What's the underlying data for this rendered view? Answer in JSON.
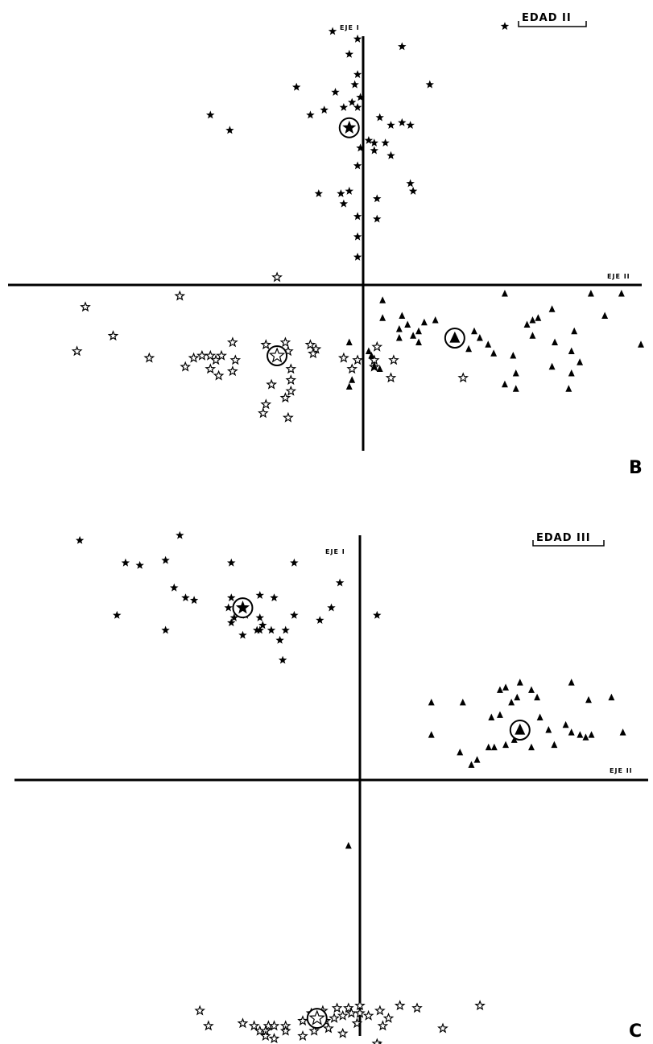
{
  "chart_data": [
    {
      "type": "scatter",
      "title": "EDAD II",
      "panel_label": "B",
      "axis_labels": {
        "vertical": "EJE I",
        "horizontal": "EJE II"
      },
      "grid": false,
      "legend": "none",
      "xlim": [
        -1.0,
        1.0
      ],
      "ylim": [
        -0.75,
        1.1
      ],
      "series": [
        {
          "marker": "filled-star",
          "points": [
            [
              -0.11,
              1.0
            ],
            [
              -0.02,
              0.97
            ],
            [
              -0.05,
              0.91
            ],
            [
              0.14,
              0.94
            ],
            [
              -0.02,
              0.83
            ],
            [
              -0.03,
              0.79
            ],
            [
              0.24,
              0.79
            ],
            [
              0.51,
              1.02
            ],
            [
              -0.24,
              0.78
            ],
            [
              -0.1,
              0.76
            ],
            [
              -0.01,
              0.74
            ],
            [
              -0.04,
              0.72
            ],
            [
              -0.07,
              0.7
            ],
            [
              -0.14,
              0.69
            ],
            [
              -0.19,
              0.67
            ],
            [
              -0.02,
              0.7
            ],
            [
              0.06,
              0.66
            ],
            [
              0.1,
              0.63
            ],
            [
              0.14,
              0.64
            ],
            [
              0.17,
              0.63
            ],
            [
              -0.55,
              0.67
            ],
            [
              -0.48,
              0.61
            ],
            [
              0.02,
              0.57
            ],
            [
              0.04,
              0.56
            ],
            [
              0.08,
              0.56
            ],
            [
              -0.01,
              0.54
            ],
            [
              0.04,
              0.53
            ],
            [
              0.1,
              0.51
            ],
            [
              -0.02,
              0.47
            ],
            [
              0.17,
              0.4
            ],
            [
              0.18,
              0.37
            ],
            [
              -0.05,
              0.37
            ],
            [
              -0.08,
              0.36
            ],
            [
              -0.16,
              0.36
            ],
            [
              0.05,
              0.34
            ],
            [
              -0.07,
              0.32
            ],
            [
              0.05,
              0.26
            ],
            [
              -0.02,
              0.27
            ],
            [
              -0.02,
              0.19
            ],
            [
              -0.02,
              0.11
            ]
          ]
        },
        {
          "marker": "open-star",
          "points": [
            [
              -0.31,
              0.03
            ],
            [
              -0.66,
              -0.05
            ],
            [
              -1.0,
              -0.1
            ],
            [
              -0.9,
              -0.23
            ],
            [
              -1.03,
              -0.3
            ],
            [
              -0.77,
              -0.33
            ],
            [
              -0.47,
              -0.26
            ],
            [
              -0.35,
              -0.27
            ],
            [
              -0.28,
              -0.26
            ],
            [
              -0.19,
              -0.27
            ],
            [
              -0.17,
              -0.29
            ],
            [
              -0.46,
              -0.34
            ],
            [
              -0.47,
              -0.39
            ],
            [
              -0.51,
              -0.32
            ],
            [
              -0.53,
              -0.34
            ],
            [
              -0.55,
              -0.32
            ],
            [
              -0.58,
              -0.32
            ],
            [
              -0.61,
              -0.33
            ],
            [
              -0.64,
              -0.37
            ],
            [
              -0.55,
              -0.38
            ],
            [
              -0.52,
              -0.41
            ],
            [
              -0.27,
              -0.3
            ],
            [
              -0.18,
              -0.31
            ],
            [
              0.05,
              -0.28
            ],
            [
              0.11,
              -0.34
            ],
            [
              -0.07,
              -0.33
            ],
            [
              -0.02,
              -0.34
            ],
            [
              0.04,
              -0.34
            ],
            [
              0.04,
              -0.37
            ],
            [
              -0.04,
              -0.38
            ],
            [
              0.1,
              -0.42
            ],
            [
              0.36,
              -0.42
            ],
            [
              -0.26,
              -0.38
            ],
            [
              -0.26,
              -0.43
            ],
            [
              -0.33,
              -0.45
            ],
            [
              -0.26,
              -0.48
            ],
            [
              -0.28,
              -0.51
            ],
            [
              -0.35,
              -0.54
            ],
            [
              -0.36,
              -0.58
            ],
            [
              -0.27,
              -0.6
            ]
          ]
        },
        {
          "marker": "filled-triangle",
          "points": [
            [
              0.07,
              -0.07
            ],
            [
              0.07,
              -0.15
            ],
            [
              0.14,
              -0.14
            ],
            [
              0.16,
              -0.18
            ],
            [
              0.2,
              -0.21
            ],
            [
              0.22,
              -0.17
            ],
            [
              0.26,
              -0.16
            ],
            [
              0.13,
              -0.2
            ],
            [
              0.18,
              -0.23
            ],
            [
              0.2,
              -0.26
            ],
            [
              0.13,
              -0.24
            ],
            [
              -0.05,
              -0.26
            ],
            [
              0.02,
              -0.3
            ],
            [
              0.03,
              -0.32
            ],
            [
              0.04,
              -0.37
            ],
            [
              0.31,
              -0.25
            ],
            [
              0.35,
              -0.25
            ],
            [
              0.4,
              -0.21
            ],
            [
              0.42,
              -0.24
            ],
            [
              0.45,
              -0.27
            ],
            [
              0.38,
              -0.29
            ],
            [
              0.47,
              -0.31
            ],
            [
              0.51,
              -0.45
            ],
            [
              0.55,
              -0.47
            ],
            [
              0.51,
              -0.04
            ],
            [
              0.54,
              -0.32
            ],
            [
              0.59,
              -0.18
            ],
            [
              0.61,
              -0.16
            ],
            [
              0.63,
              -0.15
            ],
            [
              0.68,
              -0.11
            ],
            [
              0.82,
              -0.04
            ],
            [
              0.93,
              -0.04
            ],
            [
              0.87,
              -0.14
            ],
            [
              0.76,
              -0.21
            ],
            [
              0.61,
              -0.23
            ],
            [
              0.69,
              -0.26
            ],
            [
              0.75,
              -0.3
            ],
            [
              0.78,
              -0.35
            ],
            [
              1.0,
              -0.27
            ],
            [
              0.68,
              -0.37
            ],
            [
              0.75,
              -0.4
            ],
            [
              0.74,
              -0.47
            ],
            [
              0.55,
              -0.4
            ],
            [
              0.06,
              -0.38
            ],
            [
              -0.04,
              -0.43
            ],
            [
              -0.05,
              -0.46
            ]
          ]
        }
      ],
      "centroids": [
        {
          "marker": "filled-star",
          "x": -0.05,
          "y": 0.62
        },
        {
          "marker": "open-star",
          "x": -0.31,
          "y": -0.32
        },
        {
          "marker": "filled-triangle",
          "x": 0.33,
          "y": -0.24
        }
      ]
    },
    {
      "type": "scatter",
      "title": "EDAD III",
      "panel_label": "C",
      "axis_labels": {
        "vertical": "EJE I",
        "horizontal": "EJE II"
      },
      "grid": false,
      "legend": "none",
      "xlim": [
        -1.0,
        1.0
      ],
      "ylim": [
        -1.0,
        1.0
      ],
      "series": [
        {
          "marker": "filled-star",
          "points": [
            [
              -0.98,
              0.96
            ],
            [
              -0.63,
              0.98
            ],
            [
              -0.82,
              0.87
            ],
            [
              -0.77,
              0.86
            ],
            [
              -0.68,
              0.88
            ],
            [
              -0.45,
              0.87
            ],
            [
              -0.23,
              0.87
            ],
            [
              -0.65,
              0.77
            ],
            [
              -0.61,
              0.73
            ],
            [
              -0.58,
              0.72
            ],
            [
              -0.45,
              0.73
            ],
            [
              -0.46,
              0.69
            ],
            [
              -0.4,
              0.71
            ],
            [
              -0.35,
              0.74
            ],
            [
              -0.3,
              0.73
            ],
            [
              -0.44,
              0.65
            ],
            [
              -0.4,
              0.66
            ],
            [
              -0.35,
              0.65
            ],
            [
              -0.34,
              0.62
            ],
            [
              -0.31,
              0.6
            ],
            [
              -0.35,
              0.6
            ],
            [
              -0.26,
              0.6
            ],
            [
              -0.28,
              0.56
            ],
            [
              -0.23,
              0.66
            ],
            [
              -0.14,
              0.64
            ],
            [
              -0.1,
              0.69
            ],
            [
              -0.07,
              0.79
            ],
            [
              0.06,
              0.66
            ],
            [
              -0.85,
              0.66
            ],
            [
              -0.68,
              0.6
            ],
            [
              -0.41,
              0.58
            ],
            [
              -0.45,
              0.63
            ],
            [
              -0.36,
              0.6
            ],
            [
              -0.27,
              0.48
            ]
          ]
        },
        {
          "marker": "filled-triangle",
          "points": [
            [
              0.25,
              0.31
            ],
            [
              0.25,
              0.18
            ],
            [
              0.36,
              0.31
            ],
            [
              0.49,
              0.36
            ],
            [
              0.56,
              0.39
            ],
            [
              0.51,
              0.37
            ],
            [
              0.53,
              0.31
            ],
            [
              0.55,
              0.33
            ],
            [
              0.6,
              0.36
            ],
            [
              0.62,
              0.33
            ],
            [
              0.74,
              0.39
            ],
            [
              0.8,
              0.32
            ],
            [
              0.88,
              0.33
            ],
            [
              0.46,
              0.25
            ],
            [
              0.49,
              0.26
            ],
            [
              0.58,
              0.22
            ],
            [
              0.63,
              0.25
            ],
            [
              0.66,
              0.2
            ],
            [
              0.72,
              0.22
            ],
            [
              0.74,
              0.19
            ],
            [
              0.77,
              0.18
            ],
            [
              0.79,
              0.17
            ],
            [
              0.81,
              0.18
            ],
            [
              0.92,
              0.19
            ],
            [
              0.35,
              0.11
            ],
            [
              0.45,
              0.13
            ],
            [
              0.47,
              0.13
            ],
            [
              0.51,
              0.14
            ],
            [
              0.54,
              0.16
            ],
            [
              0.6,
              0.13
            ],
            [
              0.68,
              0.14
            ],
            [
              0.41,
              0.08
            ],
            [
              0.39,
              0.06
            ],
            [
              -0.04,
              -0.26
            ]
          ]
        },
        {
          "marker": "open-star",
          "points": [
            [
              -0.56,
              -0.91
            ],
            [
              -0.53,
              -0.97
            ],
            [
              -0.41,
              -0.96
            ],
            [
              -0.37,
              -0.97
            ],
            [
              -0.35,
              -0.99
            ],
            [
              -0.32,
              -0.97
            ],
            [
              -0.3,
              -0.97
            ],
            [
              -0.26,
              -0.97
            ],
            [
              -0.2,
              -0.95
            ],
            [
              -0.17,
              -0.92
            ],
            [
              -0.13,
              -0.91
            ],
            [
              -0.08,
              -0.9
            ],
            [
              -0.04,
              -0.9
            ],
            [
              0.0,
              -0.89
            ],
            [
              0.07,
              -0.91
            ],
            [
              -0.12,
              -0.95
            ],
            [
              -0.09,
              -0.94
            ],
            [
              -0.06,
              -0.93
            ],
            [
              -0.03,
              -0.92
            ],
            [
              0.0,
              -0.92
            ],
            [
              0.03,
              -0.93
            ],
            [
              0.1,
              -0.94
            ],
            [
              0.14,
              -0.89
            ],
            [
              0.2,
              -0.9
            ],
            [
              0.42,
              -0.89
            ],
            [
              -0.26,
              -0.99
            ],
            [
              -0.16,
              -0.99
            ],
            [
              -0.11,
              -0.98
            ],
            [
              -0.01,
              -0.96
            ],
            [
              0.08,
              -0.97
            ],
            [
              0.29,
              -0.98
            ],
            [
              -0.33,
              -0.99
            ],
            [
              -0.33,
              -1.01
            ],
            [
              -0.3,
              -1.02
            ],
            [
              0.06,
              -1.04
            ],
            [
              -0.2,
              -1.01
            ],
            [
              -0.06,
              -1.0
            ],
            [
              0.07,
              -1.05
            ]
          ]
        }
      ],
      "centroids": [
        {
          "marker": "filled-star",
          "x": -0.41,
          "y": 0.69
        },
        {
          "marker": "filled-triangle",
          "x": 0.56,
          "y": 0.2
        },
        {
          "marker": "open-star",
          "x": -0.15,
          "y": -0.94
        }
      ]
    }
  ]
}
